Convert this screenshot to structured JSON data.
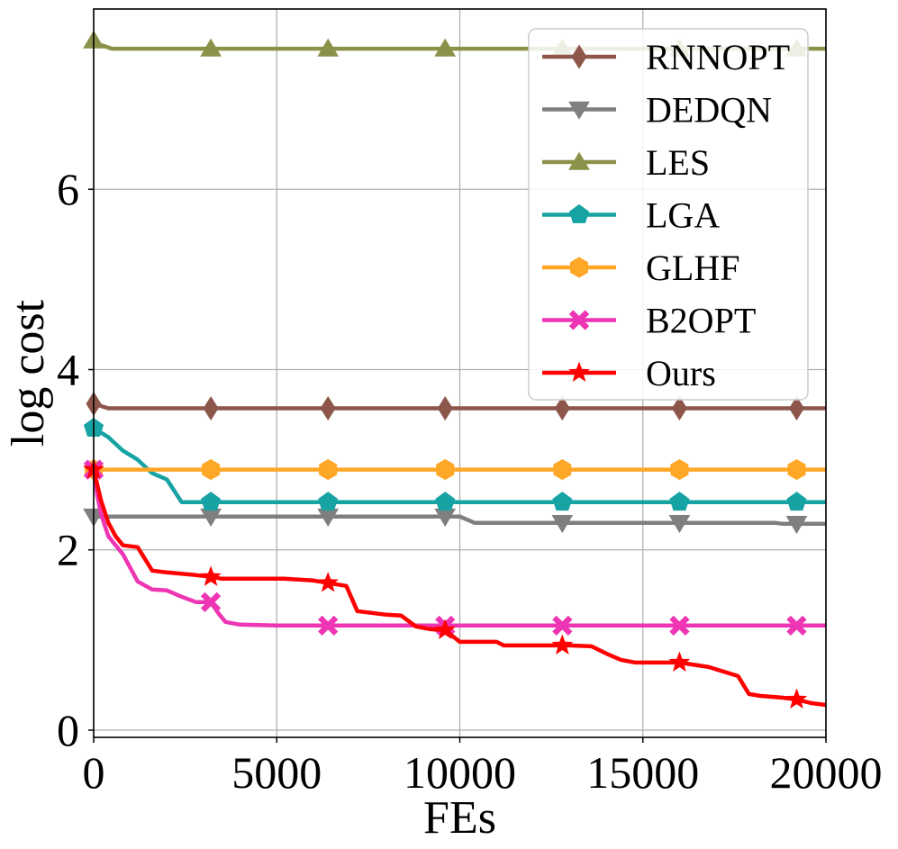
{
  "chart_data": {
    "type": "line",
    "title": "",
    "xlabel": "FEs",
    "ylabel": "log cost",
    "xlim": [
      0,
      20000
    ],
    "ylim": [
      -0.08,
      8.0
    ],
    "xticks": [
      0,
      5000,
      10000,
      15000,
      20000
    ],
    "xtick_labels": [
      "0",
      "5000",
      "10000",
      "15000",
      "20000"
    ],
    "yticks": [
      0,
      2,
      4,
      6
    ],
    "ytick_labels": [
      "0",
      "2",
      "4",
      "6"
    ],
    "grid": true,
    "legend_position": "top-right",
    "series": [
      {
        "name": "RNNOPT",
        "color": "#8c564b",
        "marker": "diamond",
        "x": [
          0,
          400,
          20000
        ],
        "y": [
          3.62,
          3.57,
          3.57
        ],
        "marker_x": [
          0,
          3200,
          6400,
          9600,
          12800,
          16000,
          19200
        ]
      },
      {
        "name": "DEDQN",
        "color": "#7f7f7f",
        "marker": "triangle-down",
        "x": [
          0,
          10000,
          10400,
          18600,
          18800,
          20000
        ],
        "y": [
          2.37,
          2.37,
          2.3,
          2.3,
          2.29,
          2.29
        ],
        "marker_x": [
          0,
          3200,
          6400,
          9600,
          12800,
          16000,
          19200
        ]
      },
      {
        "name": "LES",
        "color": "#8c9149",
        "marker": "triangle-up",
        "x": [
          0,
          200,
          500,
          20000
        ],
        "y": [
          7.65,
          7.6,
          7.56,
          7.56
        ],
        "marker_x": [
          0,
          3200,
          6400,
          9600,
          12800,
          16000,
          19200
        ]
      },
      {
        "name": "LGA",
        "color": "#17a3a3",
        "marker": "pentagon",
        "x": [
          0,
          200,
          400,
          800,
          1200,
          1600,
          2000,
          2400,
          20000
        ],
        "y": [
          3.35,
          3.3,
          3.25,
          3.1,
          3.0,
          2.85,
          2.78,
          2.53,
          2.53
        ],
        "marker_x": [
          0,
          3200,
          6400,
          9600,
          12800,
          16000,
          19200
        ]
      },
      {
        "name": "GLHF",
        "color": "#ffa726",
        "marker": "hexagon",
        "x": [
          0,
          20000
        ],
        "y": [
          2.89,
          2.89
        ],
        "marker_x": [
          0,
          3200,
          6400,
          9600,
          12800,
          16000,
          19200
        ]
      },
      {
        "name": "B2OPT",
        "color": "#ee35b4",
        "marker": "x",
        "x": [
          0,
          100,
          200,
          400,
          800,
          1200,
          1600,
          2000,
          2400,
          2800,
          3200,
          3400,
          3600,
          4000,
          5000,
          6000,
          20000
        ],
        "y": [
          2.89,
          2.6,
          2.4,
          2.15,
          1.95,
          1.65,
          1.56,
          1.55,
          1.48,
          1.42,
          1.42,
          1.3,
          1.2,
          1.17,
          1.16,
          1.16,
          1.16
        ],
        "marker_x": [
          0,
          3200,
          6400,
          9600,
          12800,
          16000,
          19200
        ]
      },
      {
        "name": "Ours",
        "color": "#ff0000",
        "marker": "star",
        "x": [
          0,
          200,
          400,
          600,
          800,
          1200,
          1600,
          2000,
          2800,
          3200,
          3500,
          5200,
          6000,
          6600,
          6900,
          7200,
          7600,
          8000,
          8400,
          8800,
          9200,
          9600,
          10000,
          11000,
          11200,
          12000,
          13000,
          13600,
          14000,
          14400,
          14800,
          16000,
          16800,
          17600,
          17900,
          18200,
          18800,
          19200,
          19600,
          20000
        ],
        "y": [
          2.89,
          2.55,
          2.3,
          2.15,
          2.05,
          2.03,
          1.77,
          1.75,
          1.72,
          1.7,
          1.68,
          1.68,
          1.66,
          1.62,
          1.6,
          1.32,
          1.3,
          1.28,
          1.27,
          1.15,
          1.12,
          1.11,
          0.98,
          0.98,
          0.94,
          0.94,
          0.94,
          0.93,
          0.85,
          0.78,
          0.75,
          0.75,
          0.7,
          0.6,
          0.4,
          0.38,
          0.36,
          0.34,
          0.3,
          0.28
        ],
        "marker_x": [
          0,
          3200,
          6400,
          9600,
          12800,
          16000,
          19200
        ]
      }
    ]
  }
}
